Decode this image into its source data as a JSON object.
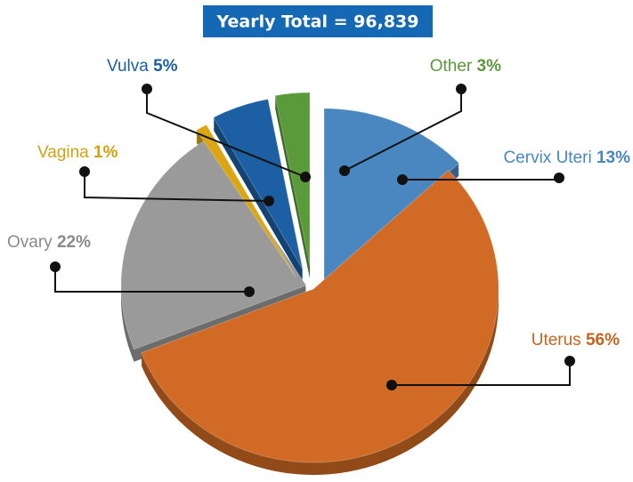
{
  "chart_data": {
    "type": "pie",
    "title": "Yearly Total = 96,839",
    "categories": [
      "Cervix Uteri",
      "Uterus",
      "Ovary",
      "Vagina",
      "Vulva",
      "Other"
    ],
    "values": [
      13,
      56,
      22,
      1,
      5,
      3
    ],
    "value_labels": [
      "13%",
      "56%",
      "22%",
      "1%",
      "5%",
      "3%"
    ],
    "colors": [
      "#4a86c0",
      "#d06a24",
      "#9a9a9a",
      "#dba514",
      "#1c5fa3",
      "#5a9a3a"
    ]
  }
}
